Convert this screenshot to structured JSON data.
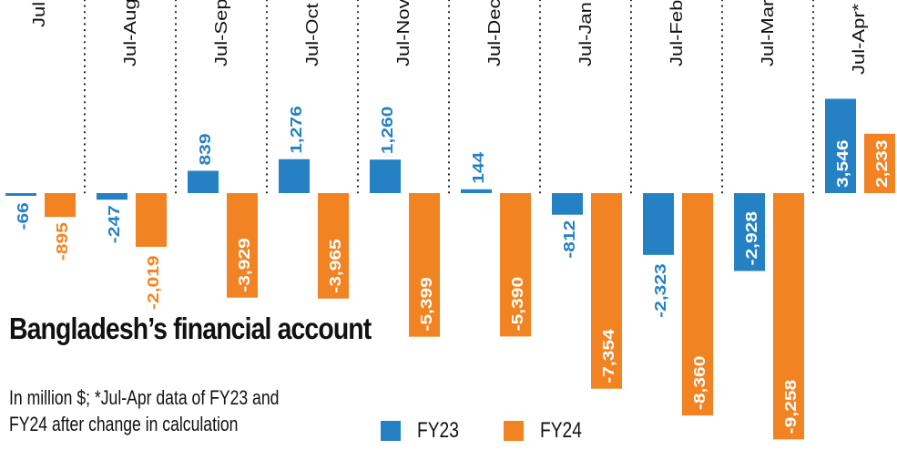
{
  "chart_data": {
    "type": "bar",
    "title": "Bangladesh’s financial account",
    "subtitle_lines": [
      "In million $; *Jul-Apr data of FY23 and",
      "FY24 after change in calculation"
    ],
    "categories": [
      "Jul",
      "Jul-Aug",
      "Jul-Sep",
      "Jul-Oct",
      "Jul-Nov",
      "Jul-Dec",
      "Jul-Jan",
      "Jul-Feb",
      "Jul-Mar",
      "Jul-Apr*"
    ],
    "series": [
      {
        "name": "FY23",
        "color": "#2581c4",
        "values": [
          -66,
          -247,
          839,
          1276,
          1260,
          144,
          -812,
          -2323,
          -2928,
          3546
        ],
        "labels": [
          "-66",
          "-247",
          "839",
          "1,276",
          "1,260",
          "144",
          "-812",
          "-2,323",
          "-2,928",
          "3,546"
        ]
      },
      {
        "name": "FY24",
        "color": "#f28322",
        "values": [
          -895,
          -2019,
          -3929,
          -3965,
          -5399,
          -5390,
          -7354,
          -8360,
          -9258,
          2233
        ],
        "labels": [
          "-895",
          "-2,019",
          "-3,929",
          "-3,965",
          "-5,399",
          "-5,390",
          "-7,354",
          "-8,360",
          "-9,258",
          "2,233"
        ]
      }
    ],
    "xlabel": "",
    "ylabel": "",
    "ylim": [
      -9258,
      3546
    ],
    "grid": false,
    "legend": "bottom"
  },
  "legend": [
    {
      "label": "FY23",
      "color": "#2581c4"
    },
    {
      "label": "FY24",
      "color": "#f28322"
    }
  ]
}
